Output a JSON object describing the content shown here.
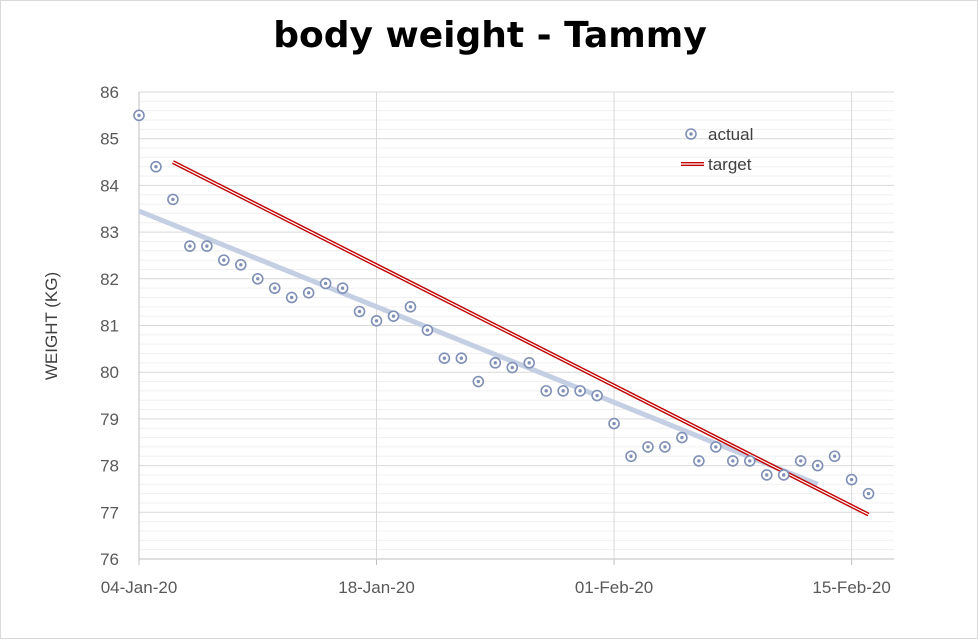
{
  "chart_data": {
    "type": "scatter",
    "title": "body weight - Tammy",
    "xlabel": "",
    "ylabel": "WEIGHT (KG)",
    "ylim": [
      76,
      86
    ],
    "yticks": [
      "76",
      "77",
      "78",
      "79",
      "80",
      "81",
      "82",
      "83",
      "84",
      "85",
      "86"
    ],
    "xlim_days": [
      0,
      44.5
    ],
    "xtick_labels": [
      "04-Jan-20",
      "18-Jan-20",
      "01-Feb-20",
      "15-Feb-20"
    ],
    "xtick_days": [
      0,
      14,
      28,
      42
    ],
    "x_start_date": "04-Jan-20",
    "grid": true,
    "legend_position": "top-right",
    "series": [
      {
        "name": "actual",
        "kind": "markers",
        "color": "#7f8fb5",
        "x_days": [
          0,
          1,
          2,
          3,
          4,
          5,
          6,
          7,
          8,
          9,
          10,
          11,
          12,
          13,
          14,
          15,
          16,
          17,
          18,
          19,
          20,
          21,
          22,
          23,
          24,
          25,
          26,
          27,
          28,
          29,
          30,
          31,
          32,
          33,
          34,
          35,
          36,
          37,
          38,
          39,
          40,
          41,
          42,
          43
        ],
        "values": [
          85.5,
          84.4,
          83.7,
          82.7,
          82.7,
          82.4,
          82.3,
          82.0,
          81.8,
          81.6,
          81.7,
          81.9,
          81.8,
          81.3,
          81.1,
          81.2,
          81.4,
          80.9,
          80.3,
          80.3,
          79.8,
          80.2,
          80.1,
          80.2,
          79.6,
          79.6,
          79.6,
          79.5,
          78.9,
          78.2,
          78.4,
          78.4,
          78.6,
          78.1,
          78.4,
          78.1,
          78.1,
          77.8,
          77.8,
          78.1,
          78.0,
          78.2,
          77.7,
          77.4
        ]
      },
      {
        "name": "target",
        "kind": "line",
        "color": "#c00000",
        "x_days": [
          2,
          43
        ],
        "values": [
          84.5,
          76.95
        ]
      },
      {
        "name": "trend",
        "kind": "trendline",
        "in_legend": false,
        "color": "#c5cfe3",
        "x_days": [
          0,
          40
        ],
        "values": [
          83.45,
          77.6
        ]
      }
    ]
  }
}
